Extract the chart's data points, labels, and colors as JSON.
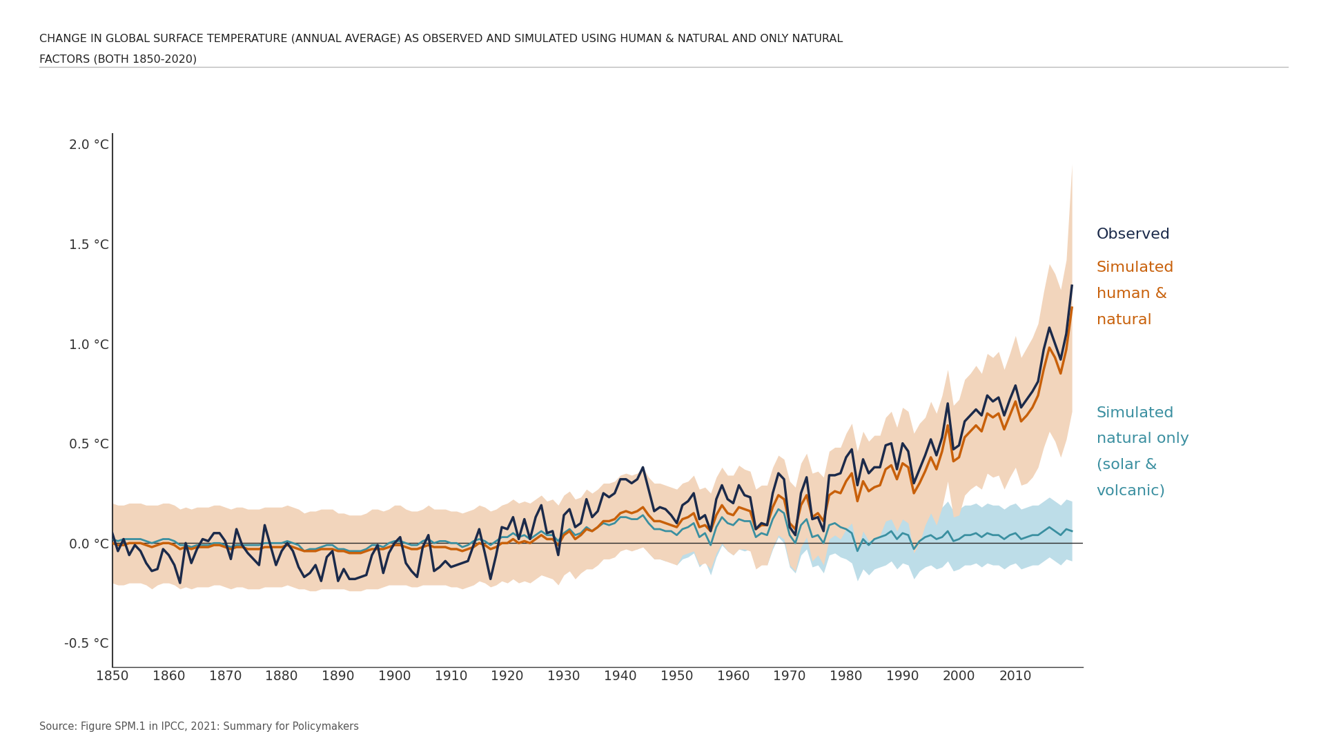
{
  "title_line1": "CHANGE IN GLOBAL SURFACE TEMPERATURE (ANNUAL AVERAGE) AS OBSERVED AND SIMULATED USING HUMAN & NATURAL AND ONLY NATURAL",
  "title_line2": "FACTORS (BOTH 1850-2020)",
  "source": "Source: Figure SPM.1 in IPCC, 2021: Summary for Policymakers",
  "bg_color": "#ffffff",
  "plot_bg_color": "#ffffff",
  "observed_color": "#1b2a4a",
  "human_natural_color": "#c8600a",
  "natural_color": "#3a8fa0",
  "human_natural_fill_color": "#f2d5bc",
  "natural_fill_color": "#bddde8",
  "ylim": [
    -0.62,
    2.05
  ],
  "xlim": [
    1850,
    2022
  ],
  "yticks": [
    -0.5,
    0.0,
    0.5,
    1.0,
    1.5,
    2.0
  ],
  "ytick_labels": [
    "-0.5 °C",
    "0.0 °C",
    "0.5 °C",
    "1.0 °C",
    "1.5 °C",
    "2.0 °C"
  ],
  "xticks": [
    1850,
    1860,
    1870,
    1880,
    1890,
    1900,
    1910,
    1920,
    1930,
    1940,
    1950,
    1960,
    1970,
    1980,
    1990,
    2000,
    2010
  ],
  "years": [
    1850,
    1851,
    1852,
    1853,
    1854,
    1855,
    1856,
    1857,
    1858,
    1859,
    1860,
    1861,
    1862,
    1863,
    1864,
    1865,
    1866,
    1867,
    1868,
    1869,
    1870,
    1871,
    1872,
    1873,
    1874,
    1875,
    1876,
    1877,
    1878,
    1879,
    1880,
    1881,
    1882,
    1883,
    1884,
    1885,
    1886,
    1887,
    1888,
    1889,
    1890,
    1891,
    1892,
    1893,
    1894,
    1895,
    1896,
    1897,
    1898,
    1899,
    1900,
    1901,
    1902,
    1903,
    1904,
    1905,
    1906,
    1907,
    1908,
    1909,
    1910,
    1911,
    1912,
    1913,
    1914,
    1915,
    1916,
    1917,
    1918,
    1919,
    1920,
    1921,
    1922,
    1923,
    1924,
    1925,
    1926,
    1927,
    1928,
    1929,
    1930,
    1931,
    1932,
    1933,
    1934,
    1935,
    1936,
    1937,
    1938,
    1939,
    1940,
    1941,
    1942,
    1943,
    1944,
    1945,
    1946,
    1947,
    1948,
    1949,
    1950,
    1951,
    1952,
    1953,
    1954,
    1955,
    1956,
    1957,
    1958,
    1959,
    1960,
    1961,
    1962,
    1963,
    1964,
    1965,
    1966,
    1967,
    1968,
    1969,
    1970,
    1971,
    1972,
    1973,
    1974,
    1975,
    1976,
    1977,
    1978,
    1979,
    1980,
    1981,
    1982,
    1983,
    1984,
    1985,
    1986,
    1987,
    1988,
    1989,
    1990,
    1991,
    1992,
    1993,
    1994,
    1995,
    1996,
    1997,
    1998,
    1999,
    2000,
    2001,
    2002,
    2003,
    2004,
    2005,
    2006,
    2007,
    2008,
    2009,
    2010,
    2011,
    2012,
    2013,
    2014,
    2015,
    2016,
    2017,
    2018,
    2019,
    2020
  ],
  "observed": [
    0.05,
    -0.04,
    0.02,
    -0.06,
    -0.01,
    -0.04,
    -0.1,
    -0.14,
    -0.13,
    -0.03,
    -0.06,
    -0.11,
    -0.2,
    0.0,
    -0.1,
    -0.03,
    0.02,
    0.01,
    0.05,
    0.05,
    0.01,
    -0.08,
    0.07,
    -0.01,
    -0.05,
    -0.08,
    -0.11,
    0.09,
    -0.01,
    -0.11,
    -0.04,
    0.0,
    -0.04,
    -0.12,
    -0.17,
    -0.15,
    -0.11,
    -0.19,
    -0.07,
    -0.04,
    -0.19,
    -0.13,
    -0.18,
    -0.18,
    -0.17,
    -0.16,
    -0.06,
    -0.01,
    -0.15,
    -0.05,
    0.0,
    0.03,
    -0.1,
    -0.14,
    -0.17,
    -0.02,
    0.04,
    -0.14,
    -0.12,
    -0.09,
    -0.12,
    -0.11,
    -0.1,
    -0.09,
    -0.01,
    0.07,
    -0.05,
    -0.18,
    -0.06,
    0.08,
    0.07,
    0.13,
    0.02,
    0.12,
    0.02,
    0.13,
    0.19,
    0.05,
    0.06,
    -0.06,
    0.14,
    0.17,
    0.08,
    0.1,
    0.22,
    0.13,
    0.16,
    0.25,
    0.23,
    0.25,
    0.32,
    0.32,
    0.3,
    0.32,
    0.38,
    0.27,
    0.16,
    0.18,
    0.17,
    0.14,
    0.1,
    0.19,
    0.21,
    0.25,
    0.12,
    0.14,
    0.06,
    0.22,
    0.29,
    0.22,
    0.2,
    0.29,
    0.24,
    0.23,
    0.07,
    0.1,
    0.09,
    0.25,
    0.35,
    0.32,
    0.08,
    0.04,
    0.25,
    0.33,
    0.12,
    0.13,
    0.06,
    0.34,
    0.34,
    0.35,
    0.43,
    0.47,
    0.29,
    0.42,
    0.35,
    0.38,
    0.38,
    0.49,
    0.5,
    0.37,
    0.5,
    0.46,
    0.3,
    0.37,
    0.44,
    0.52,
    0.44,
    0.53,
    0.7,
    0.47,
    0.49,
    0.61,
    0.64,
    0.67,
    0.64,
    0.74,
    0.71,
    0.73,
    0.64,
    0.72,
    0.79,
    0.68,
    0.72,
    0.76,
    0.81,
    0.97,
    1.08,
    1.0,
    0.92,
    1.05,
    1.29
  ],
  "human_natural_mean": [
    0.0,
    -0.01,
    -0.01,
    0.0,
    0.0,
    0.0,
    -0.01,
    -0.02,
    -0.01,
    0.0,
    0.0,
    -0.01,
    -0.03,
    -0.02,
    -0.03,
    -0.02,
    -0.02,
    -0.02,
    -0.01,
    -0.01,
    -0.02,
    -0.03,
    -0.02,
    -0.02,
    -0.03,
    -0.03,
    -0.03,
    -0.02,
    -0.02,
    -0.02,
    -0.02,
    -0.01,
    -0.02,
    -0.03,
    -0.04,
    -0.04,
    -0.04,
    -0.03,
    -0.03,
    -0.03,
    -0.04,
    -0.04,
    -0.05,
    -0.05,
    -0.05,
    -0.04,
    -0.03,
    -0.03,
    -0.03,
    -0.02,
    -0.01,
    -0.01,
    -0.02,
    -0.03,
    -0.03,
    -0.02,
    -0.01,
    -0.02,
    -0.02,
    -0.02,
    -0.03,
    -0.03,
    -0.04,
    -0.03,
    -0.02,
    0.0,
    -0.01,
    -0.03,
    -0.02,
    0.0,
    0.0,
    0.02,
    0.0,
    0.01,
    0.0,
    0.02,
    0.04,
    0.02,
    0.02,
    -0.01,
    0.04,
    0.06,
    0.02,
    0.04,
    0.07,
    0.06,
    0.08,
    0.11,
    0.11,
    0.12,
    0.15,
    0.16,
    0.15,
    0.16,
    0.18,
    0.14,
    0.11,
    0.11,
    0.1,
    0.09,
    0.08,
    0.12,
    0.13,
    0.15,
    0.08,
    0.09,
    0.06,
    0.14,
    0.19,
    0.15,
    0.14,
    0.18,
    0.17,
    0.16,
    0.07,
    0.09,
    0.09,
    0.18,
    0.24,
    0.22,
    0.1,
    0.07,
    0.19,
    0.24,
    0.13,
    0.15,
    0.11,
    0.24,
    0.26,
    0.25,
    0.31,
    0.35,
    0.21,
    0.31,
    0.26,
    0.28,
    0.29,
    0.37,
    0.39,
    0.32,
    0.4,
    0.38,
    0.25,
    0.3,
    0.36,
    0.43,
    0.37,
    0.46,
    0.59,
    0.41,
    0.43,
    0.53,
    0.56,
    0.59,
    0.56,
    0.65,
    0.63,
    0.65,
    0.57,
    0.64,
    0.71,
    0.61,
    0.64,
    0.68,
    0.74,
    0.87,
    0.98,
    0.93,
    0.85,
    0.97,
    1.18
  ],
  "human_natural_upper": [
    0.2,
    0.19,
    0.19,
    0.2,
    0.2,
    0.2,
    0.19,
    0.19,
    0.19,
    0.2,
    0.2,
    0.19,
    0.17,
    0.18,
    0.17,
    0.18,
    0.18,
    0.18,
    0.19,
    0.19,
    0.18,
    0.17,
    0.18,
    0.18,
    0.17,
    0.17,
    0.17,
    0.18,
    0.18,
    0.18,
    0.18,
    0.19,
    0.18,
    0.17,
    0.15,
    0.16,
    0.16,
    0.17,
    0.17,
    0.17,
    0.15,
    0.15,
    0.14,
    0.14,
    0.14,
    0.15,
    0.17,
    0.17,
    0.16,
    0.17,
    0.19,
    0.19,
    0.17,
    0.16,
    0.16,
    0.17,
    0.19,
    0.17,
    0.17,
    0.17,
    0.16,
    0.16,
    0.15,
    0.16,
    0.17,
    0.19,
    0.18,
    0.16,
    0.17,
    0.19,
    0.2,
    0.22,
    0.2,
    0.21,
    0.2,
    0.22,
    0.24,
    0.21,
    0.22,
    0.19,
    0.24,
    0.26,
    0.22,
    0.23,
    0.27,
    0.25,
    0.27,
    0.3,
    0.3,
    0.31,
    0.34,
    0.35,
    0.34,
    0.35,
    0.38,
    0.33,
    0.3,
    0.3,
    0.29,
    0.28,
    0.27,
    0.3,
    0.31,
    0.34,
    0.27,
    0.28,
    0.25,
    0.33,
    0.38,
    0.34,
    0.34,
    0.39,
    0.37,
    0.36,
    0.27,
    0.29,
    0.29,
    0.38,
    0.44,
    0.42,
    0.31,
    0.28,
    0.4,
    0.45,
    0.35,
    0.36,
    0.33,
    0.46,
    0.48,
    0.48,
    0.55,
    0.6,
    0.46,
    0.56,
    0.51,
    0.54,
    0.54,
    0.63,
    0.66,
    0.58,
    0.68,
    0.66,
    0.55,
    0.6,
    0.63,
    0.71,
    0.65,
    0.74,
    0.87,
    0.69,
    0.72,
    0.82,
    0.85,
    0.89,
    0.85,
    0.95,
    0.93,
    0.96,
    0.87,
    0.95,
    1.04,
    0.93,
    0.98,
    1.03,
    1.1,
    1.26,
    1.4,
    1.35,
    1.27,
    1.42,
    1.9
  ],
  "human_natural_lower": [
    -0.2,
    -0.21,
    -0.21,
    -0.2,
    -0.2,
    -0.2,
    -0.21,
    -0.23,
    -0.21,
    -0.2,
    -0.2,
    -0.21,
    -0.23,
    -0.22,
    -0.23,
    -0.22,
    -0.22,
    -0.22,
    -0.21,
    -0.21,
    -0.22,
    -0.23,
    -0.22,
    -0.22,
    -0.23,
    -0.23,
    -0.23,
    -0.22,
    -0.22,
    -0.22,
    -0.22,
    -0.21,
    -0.22,
    -0.23,
    -0.23,
    -0.24,
    -0.24,
    -0.23,
    -0.23,
    -0.23,
    -0.23,
    -0.23,
    -0.24,
    -0.24,
    -0.24,
    -0.23,
    -0.23,
    -0.23,
    -0.22,
    -0.21,
    -0.21,
    -0.21,
    -0.21,
    -0.22,
    -0.22,
    -0.21,
    -0.21,
    -0.21,
    -0.21,
    -0.21,
    -0.22,
    -0.22,
    -0.23,
    -0.22,
    -0.21,
    -0.19,
    -0.2,
    -0.22,
    -0.21,
    -0.19,
    -0.2,
    -0.18,
    -0.2,
    -0.19,
    -0.2,
    -0.18,
    -0.16,
    -0.17,
    -0.18,
    -0.21,
    -0.16,
    -0.14,
    -0.18,
    -0.15,
    -0.13,
    -0.13,
    -0.11,
    -0.08,
    -0.08,
    -0.07,
    -0.04,
    -0.03,
    -0.04,
    -0.03,
    -0.02,
    -0.05,
    -0.08,
    -0.08,
    -0.09,
    -0.1,
    -0.11,
    -0.06,
    -0.05,
    -0.04,
    -0.11,
    -0.1,
    -0.13,
    -0.05,
    0.0,
    -0.04,
    -0.06,
    -0.03,
    -0.03,
    -0.04,
    -0.13,
    -0.11,
    -0.11,
    -0.02,
    0.04,
    0.02,
    -0.11,
    -0.14,
    -0.02,
    0.03,
    -0.09,
    -0.06,
    -0.11,
    0.02,
    0.04,
    0.02,
    0.07,
    0.1,
    -0.04,
    0.06,
    0.01,
    0.02,
    0.04,
    0.11,
    0.12,
    0.06,
    0.12,
    0.1,
    -0.05,
    0.0,
    0.09,
    0.15,
    0.09,
    0.18,
    0.31,
    0.13,
    0.14,
    0.24,
    0.27,
    0.29,
    0.27,
    0.35,
    0.33,
    0.34,
    0.27,
    0.33,
    0.38,
    0.29,
    0.3,
    0.33,
    0.38,
    0.48,
    0.56,
    0.51,
    0.43,
    0.52,
    0.66
  ],
  "natural_mean": [
    0.02,
    0.01,
    0.02,
    0.02,
    0.02,
    0.02,
    0.01,
    0.0,
    0.01,
    0.02,
    0.02,
    0.01,
    -0.01,
    -0.01,
    -0.02,
    -0.01,
    -0.01,
    -0.01,
    0.0,
    0.0,
    -0.01,
    -0.02,
    -0.01,
    -0.01,
    -0.01,
    -0.01,
    -0.01,
    0.0,
    0.0,
    0.0,
    0.0,
    0.01,
    0.0,
    -0.01,
    -0.04,
    -0.03,
    -0.03,
    -0.02,
    -0.01,
    -0.01,
    -0.03,
    -0.03,
    -0.04,
    -0.04,
    -0.04,
    -0.03,
    -0.01,
    -0.01,
    -0.02,
    0.0,
    0.01,
    0.01,
    0.0,
    -0.01,
    -0.01,
    0.01,
    0.02,
    0.0,
    0.01,
    0.01,
    0.0,
    0.0,
    -0.02,
    -0.01,
    0.01,
    0.02,
    0.01,
    -0.01,
    0.01,
    0.03,
    0.03,
    0.05,
    0.03,
    0.04,
    0.02,
    0.04,
    0.06,
    0.04,
    0.04,
    0.01,
    0.05,
    0.07,
    0.04,
    0.05,
    0.08,
    0.06,
    0.08,
    0.1,
    0.09,
    0.1,
    0.13,
    0.13,
    0.12,
    0.12,
    0.14,
    0.1,
    0.07,
    0.07,
    0.06,
    0.06,
    0.04,
    0.07,
    0.08,
    0.1,
    0.03,
    0.05,
    -0.01,
    0.08,
    0.13,
    0.1,
    0.09,
    0.12,
    0.11,
    0.11,
    0.03,
    0.05,
    0.04,
    0.12,
    0.17,
    0.15,
    0.04,
    0.0,
    0.09,
    0.12,
    0.03,
    0.04,
    0.0,
    0.09,
    0.1,
    0.08,
    0.07,
    0.05,
    -0.04,
    0.02,
    -0.01,
    0.02,
    0.03,
    0.04,
    0.06,
    0.02,
    0.05,
    0.04,
    -0.03,
    0.01,
    0.03,
    0.04,
    0.02,
    0.03,
    0.06,
    0.01,
    0.02,
    0.04,
    0.04,
    0.05,
    0.03,
    0.05,
    0.04,
    0.04,
    0.02,
    0.04,
    0.05,
    0.02,
    0.03,
    0.04,
    0.04,
    0.06,
    0.08,
    0.06,
    0.04,
    0.07,
    0.06
  ],
  "natural_upper": [
    0.18,
    0.17,
    0.18,
    0.18,
    0.18,
    0.18,
    0.17,
    0.16,
    0.17,
    0.18,
    0.18,
    0.17,
    0.15,
    0.15,
    0.14,
    0.15,
    0.15,
    0.15,
    0.16,
    0.16,
    0.15,
    0.14,
    0.15,
    0.15,
    0.15,
    0.14,
    0.15,
    0.16,
    0.15,
    0.16,
    0.16,
    0.17,
    0.16,
    0.14,
    0.12,
    0.13,
    0.13,
    0.14,
    0.15,
    0.15,
    0.13,
    0.13,
    0.12,
    0.12,
    0.12,
    0.13,
    0.15,
    0.15,
    0.14,
    0.16,
    0.17,
    0.17,
    0.15,
    0.14,
    0.14,
    0.16,
    0.17,
    0.15,
    0.15,
    0.16,
    0.15,
    0.15,
    0.13,
    0.14,
    0.16,
    0.18,
    0.17,
    0.14,
    0.16,
    0.18,
    0.18,
    0.2,
    0.18,
    0.19,
    0.17,
    0.19,
    0.21,
    0.19,
    0.19,
    0.16,
    0.2,
    0.22,
    0.19,
    0.2,
    0.23,
    0.21,
    0.23,
    0.25,
    0.24,
    0.25,
    0.28,
    0.28,
    0.27,
    0.27,
    0.29,
    0.25,
    0.22,
    0.22,
    0.21,
    0.21,
    0.19,
    0.22,
    0.23,
    0.25,
    0.18,
    0.19,
    0.14,
    0.23,
    0.27,
    0.24,
    0.24,
    0.27,
    0.26,
    0.25,
    0.18,
    0.19,
    0.19,
    0.27,
    0.31,
    0.3,
    0.2,
    0.15,
    0.24,
    0.27,
    0.18,
    0.19,
    0.15,
    0.24,
    0.25,
    0.23,
    0.22,
    0.2,
    0.11,
    0.17,
    0.14,
    0.17,
    0.18,
    0.19,
    0.21,
    0.17,
    0.2,
    0.19,
    0.12,
    0.16,
    0.18,
    0.19,
    0.17,
    0.18,
    0.21,
    0.16,
    0.17,
    0.19,
    0.19,
    0.2,
    0.18,
    0.2,
    0.19,
    0.19,
    0.17,
    0.19,
    0.2,
    0.17,
    0.18,
    0.19,
    0.19,
    0.21,
    0.23,
    0.21,
    0.19,
    0.22,
    0.21
  ],
  "natural_lower": [
    -0.14,
    -0.15,
    -0.14,
    -0.14,
    -0.14,
    -0.14,
    -0.15,
    -0.16,
    -0.15,
    -0.14,
    -0.14,
    -0.15,
    -0.17,
    -0.17,
    -0.18,
    -0.17,
    -0.17,
    -0.17,
    -0.16,
    -0.16,
    -0.17,
    -0.18,
    -0.17,
    -0.17,
    -0.17,
    -0.18,
    -0.17,
    -0.16,
    -0.15,
    -0.16,
    -0.16,
    -0.15,
    -0.16,
    -0.16,
    -0.2,
    -0.19,
    -0.19,
    -0.18,
    -0.17,
    -0.17,
    -0.19,
    -0.19,
    -0.2,
    -0.2,
    -0.2,
    -0.19,
    -0.17,
    -0.17,
    -0.18,
    -0.16,
    -0.15,
    -0.15,
    -0.15,
    -0.16,
    -0.16,
    -0.14,
    -0.13,
    -0.15,
    -0.13,
    -0.14,
    -0.15,
    -0.15,
    -0.17,
    -0.16,
    -0.14,
    -0.14,
    -0.15,
    -0.16,
    -0.14,
    -0.12,
    -0.12,
    -0.1,
    -0.12,
    -0.11,
    -0.13,
    -0.11,
    -0.09,
    -0.11,
    -0.11,
    -0.14,
    -0.1,
    -0.08,
    -0.11,
    -0.1,
    -0.07,
    -0.09,
    -0.07,
    -0.05,
    -0.06,
    -0.05,
    -0.02,
    -0.02,
    -0.03,
    -0.03,
    -0.01,
    -0.05,
    -0.08,
    -0.08,
    -0.09,
    -0.09,
    -0.11,
    -0.08,
    -0.07,
    -0.05,
    -0.12,
    -0.09,
    -0.16,
    -0.07,
    -0.01,
    -0.04,
    -0.06,
    -0.03,
    -0.04,
    -0.03,
    -0.12,
    -0.09,
    -0.11,
    -0.03,
    0.03,
    0.0,
    -0.12,
    -0.15,
    -0.06,
    -0.03,
    -0.12,
    -0.11,
    -0.15,
    -0.06,
    -0.05,
    -0.07,
    -0.08,
    -0.1,
    -0.19,
    -0.13,
    -0.16,
    -0.13,
    -0.12,
    -0.11,
    -0.09,
    -0.13,
    -0.1,
    -0.11,
    -0.18,
    -0.14,
    -0.12,
    -0.11,
    -0.13,
    -0.12,
    -0.09,
    -0.14,
    -0.13,
    -0.11,
    -0.11,
    -0.1,
    -0.12,
    -0.1,
    -0.11,
    -0.11,
    -0.13,
    -0.11,
    -0.1,
    -0.13,
    -0.12,
    -0.11,
    -0.11,
    -0.09,
    -0.07,
    -0.09,
    -0.11,
    -0.08,
    -0.09
  ]
}
